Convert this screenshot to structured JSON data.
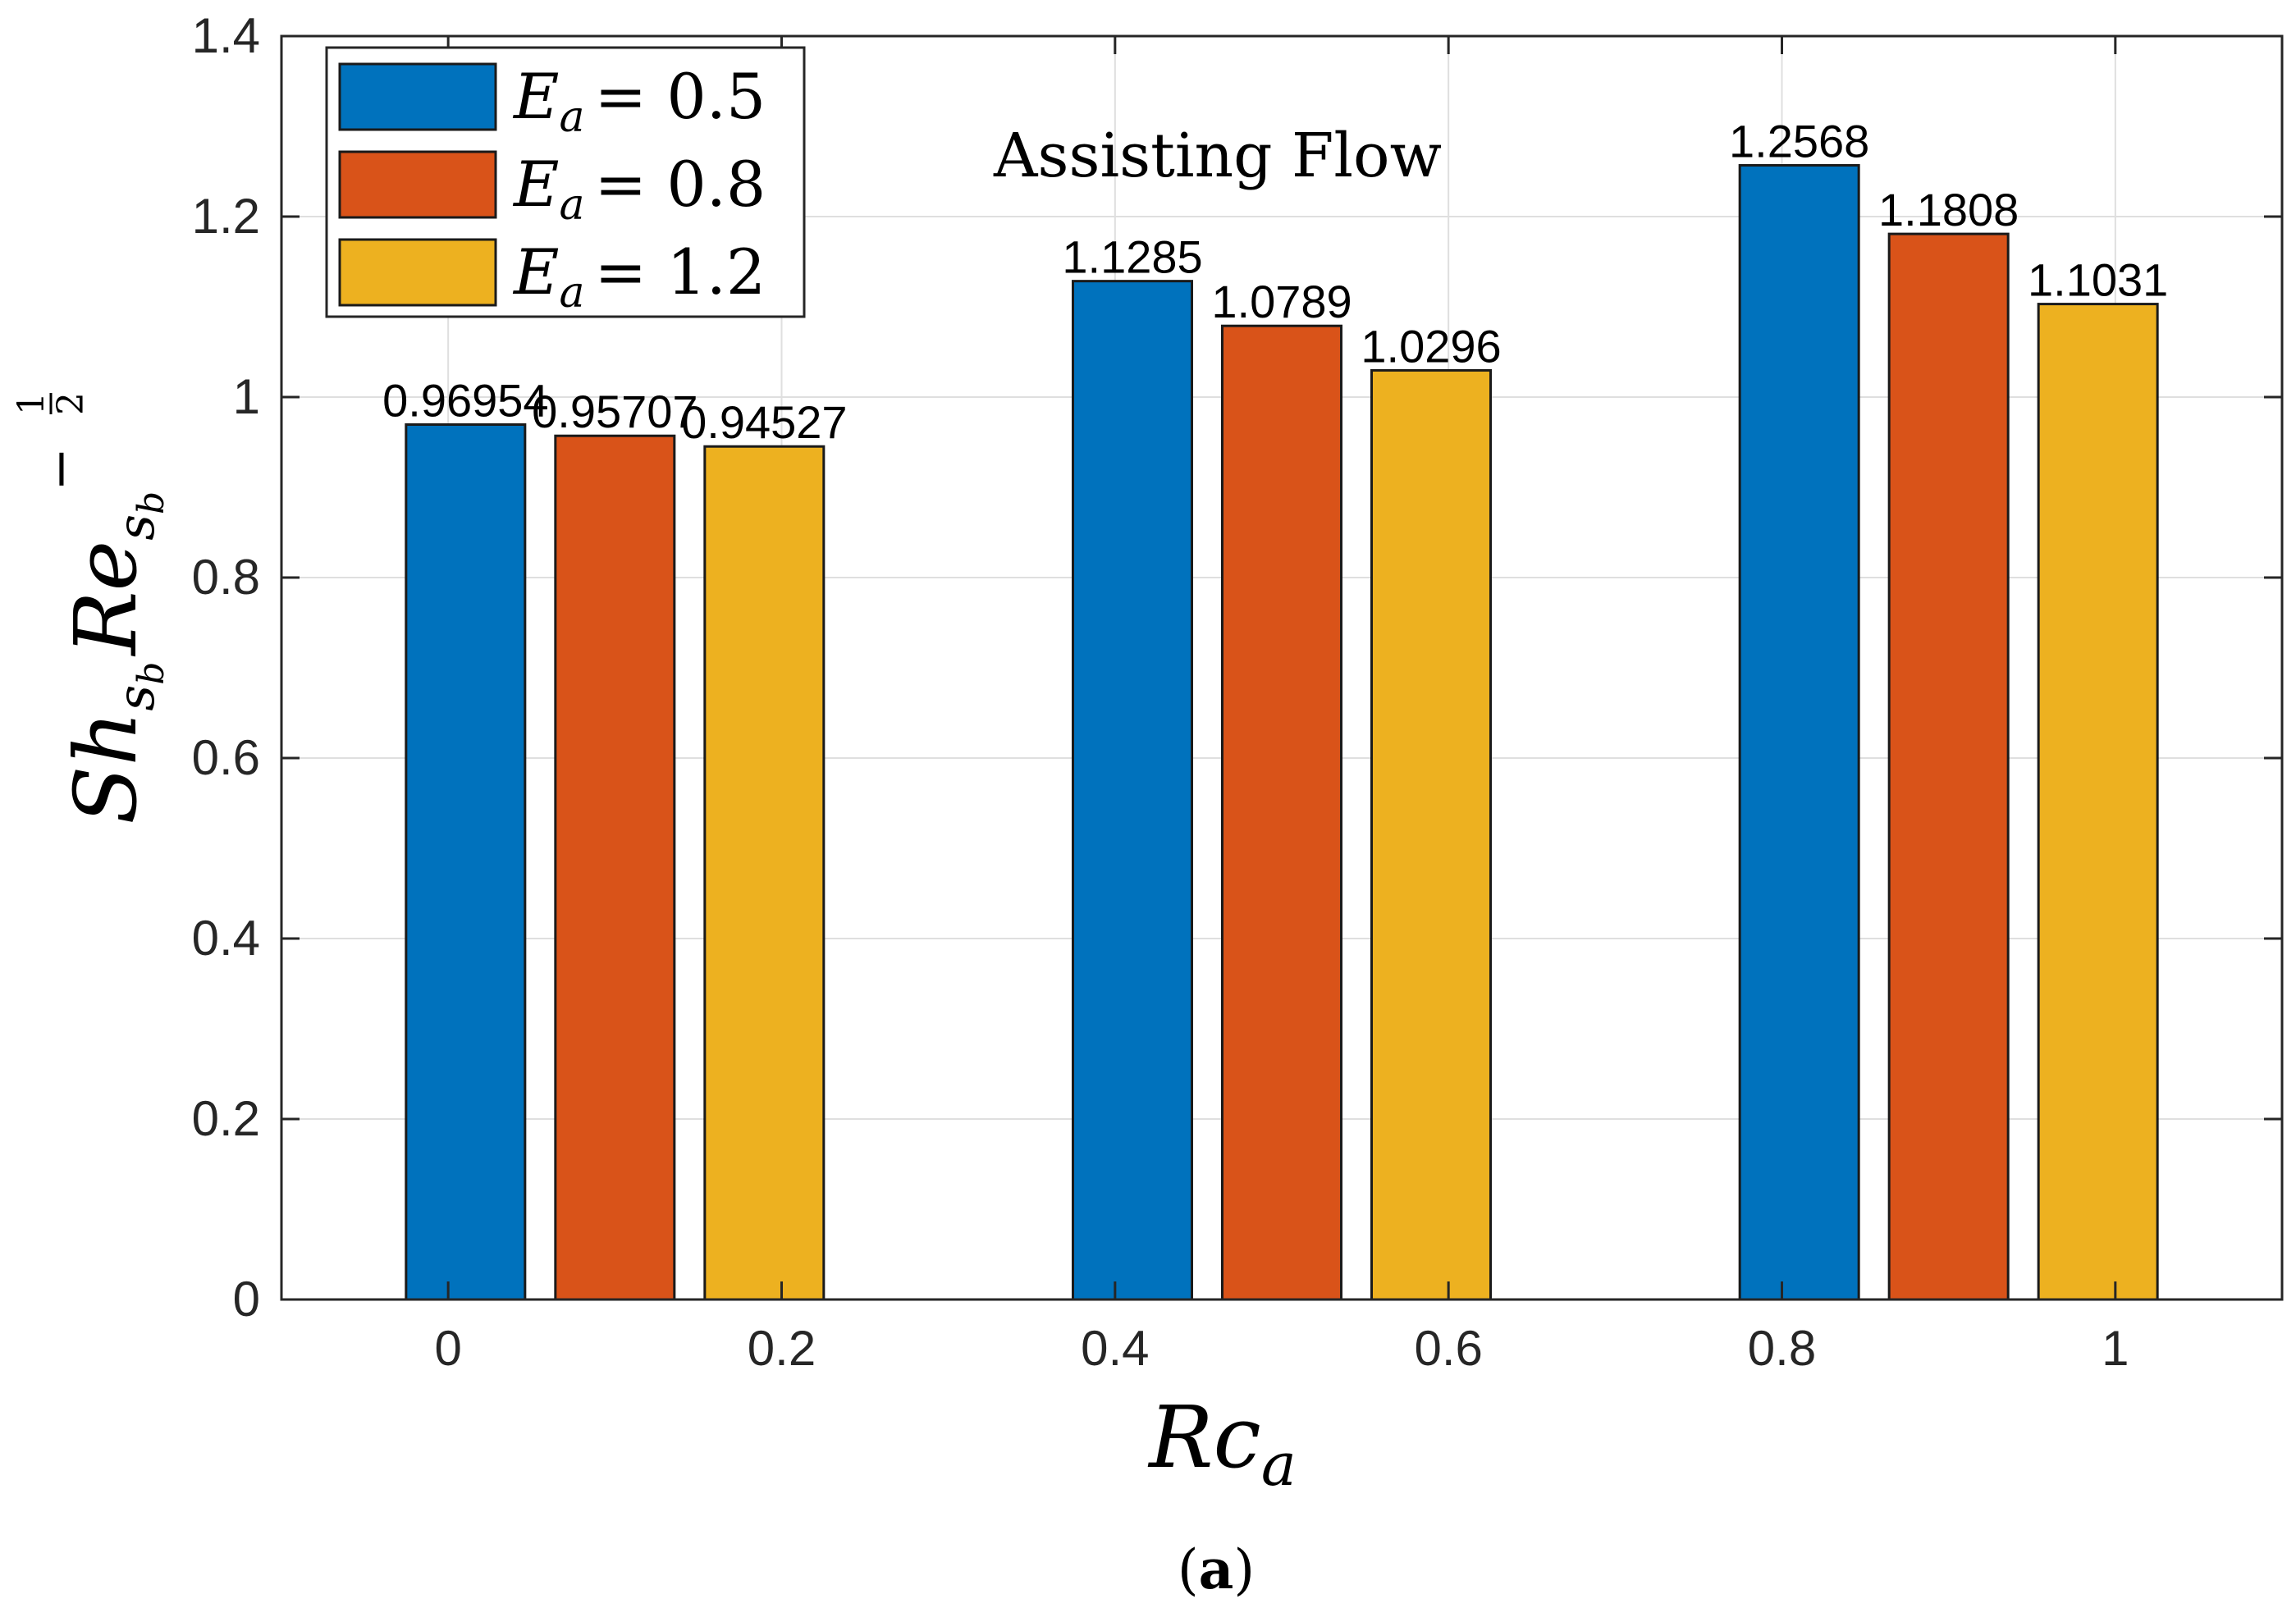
{
  "chart_data": {
    "type": "bar",
    "x_ticks": [
      "0",
      "0.2",
      "0.4",
      "0.6",
      "0.8",
      "1"
    ],
    "y_ticks": [
      "0",
      "0.2",
      "0.4",
      "0.6",
      "0.8",
      "1",
      "1.2",
      "1.4"
    ],
    "xlim": [
      -0.1,
      1.1
    ],
    "ylim": [
      0,
      1.4
    ],
    "grid": true,
    "legend_position": "top-left",
    "xlabel": "Rc",
    "xlabel_sub": "a",
    "ylabel": "Sh",
    "ylabel_mid": "Re",
    "ylabel_sub": "s",
    "ylabel_subsub": "b",
    "ylabel_exp_sign": "−",
    "ylabel_exp_num": "1",
    "ylabel_exp_den": "2",
    "annotation": "Assisting Flow",
    "caption_open": "(",
    "caption_letter": "a",
    "caption_close": ")",
    "groups": [
      0.1,
      0.5,
      0.9
    ],
    "series": [
      {
        "name": "E",
        "sub": "a",
        "eq": "= 0.5",
        "color": "#0072BD",
        "values": [
          0.96954,
          1.1285,
          1.2568
        ],
        "labels": [
          "0.96954",
          "1.1285",
          "1.2568"
        ]
      },
      {
        "name": "E",
        "sub": "a",
        "eq": "= 0.8",
        "color": "#D95319",
        "values": [
          0.95707,
          1.0789,
          1.1808
        ],
        "labels": [
          "0.95707",
          "1.0789",
          "1.1808"
        ]
      },
      {
        "name": "E",
        "sub": "a",
        "eq": "= 1.2",
        "color": "#EDB120",
        "values": [
          0.94527,
          1.0296,
          1.1031
        ],
        "labels": [
          "0.94527",
          "1.0296",
          "1.1031"
        ]
      }
    ]
  }
}
